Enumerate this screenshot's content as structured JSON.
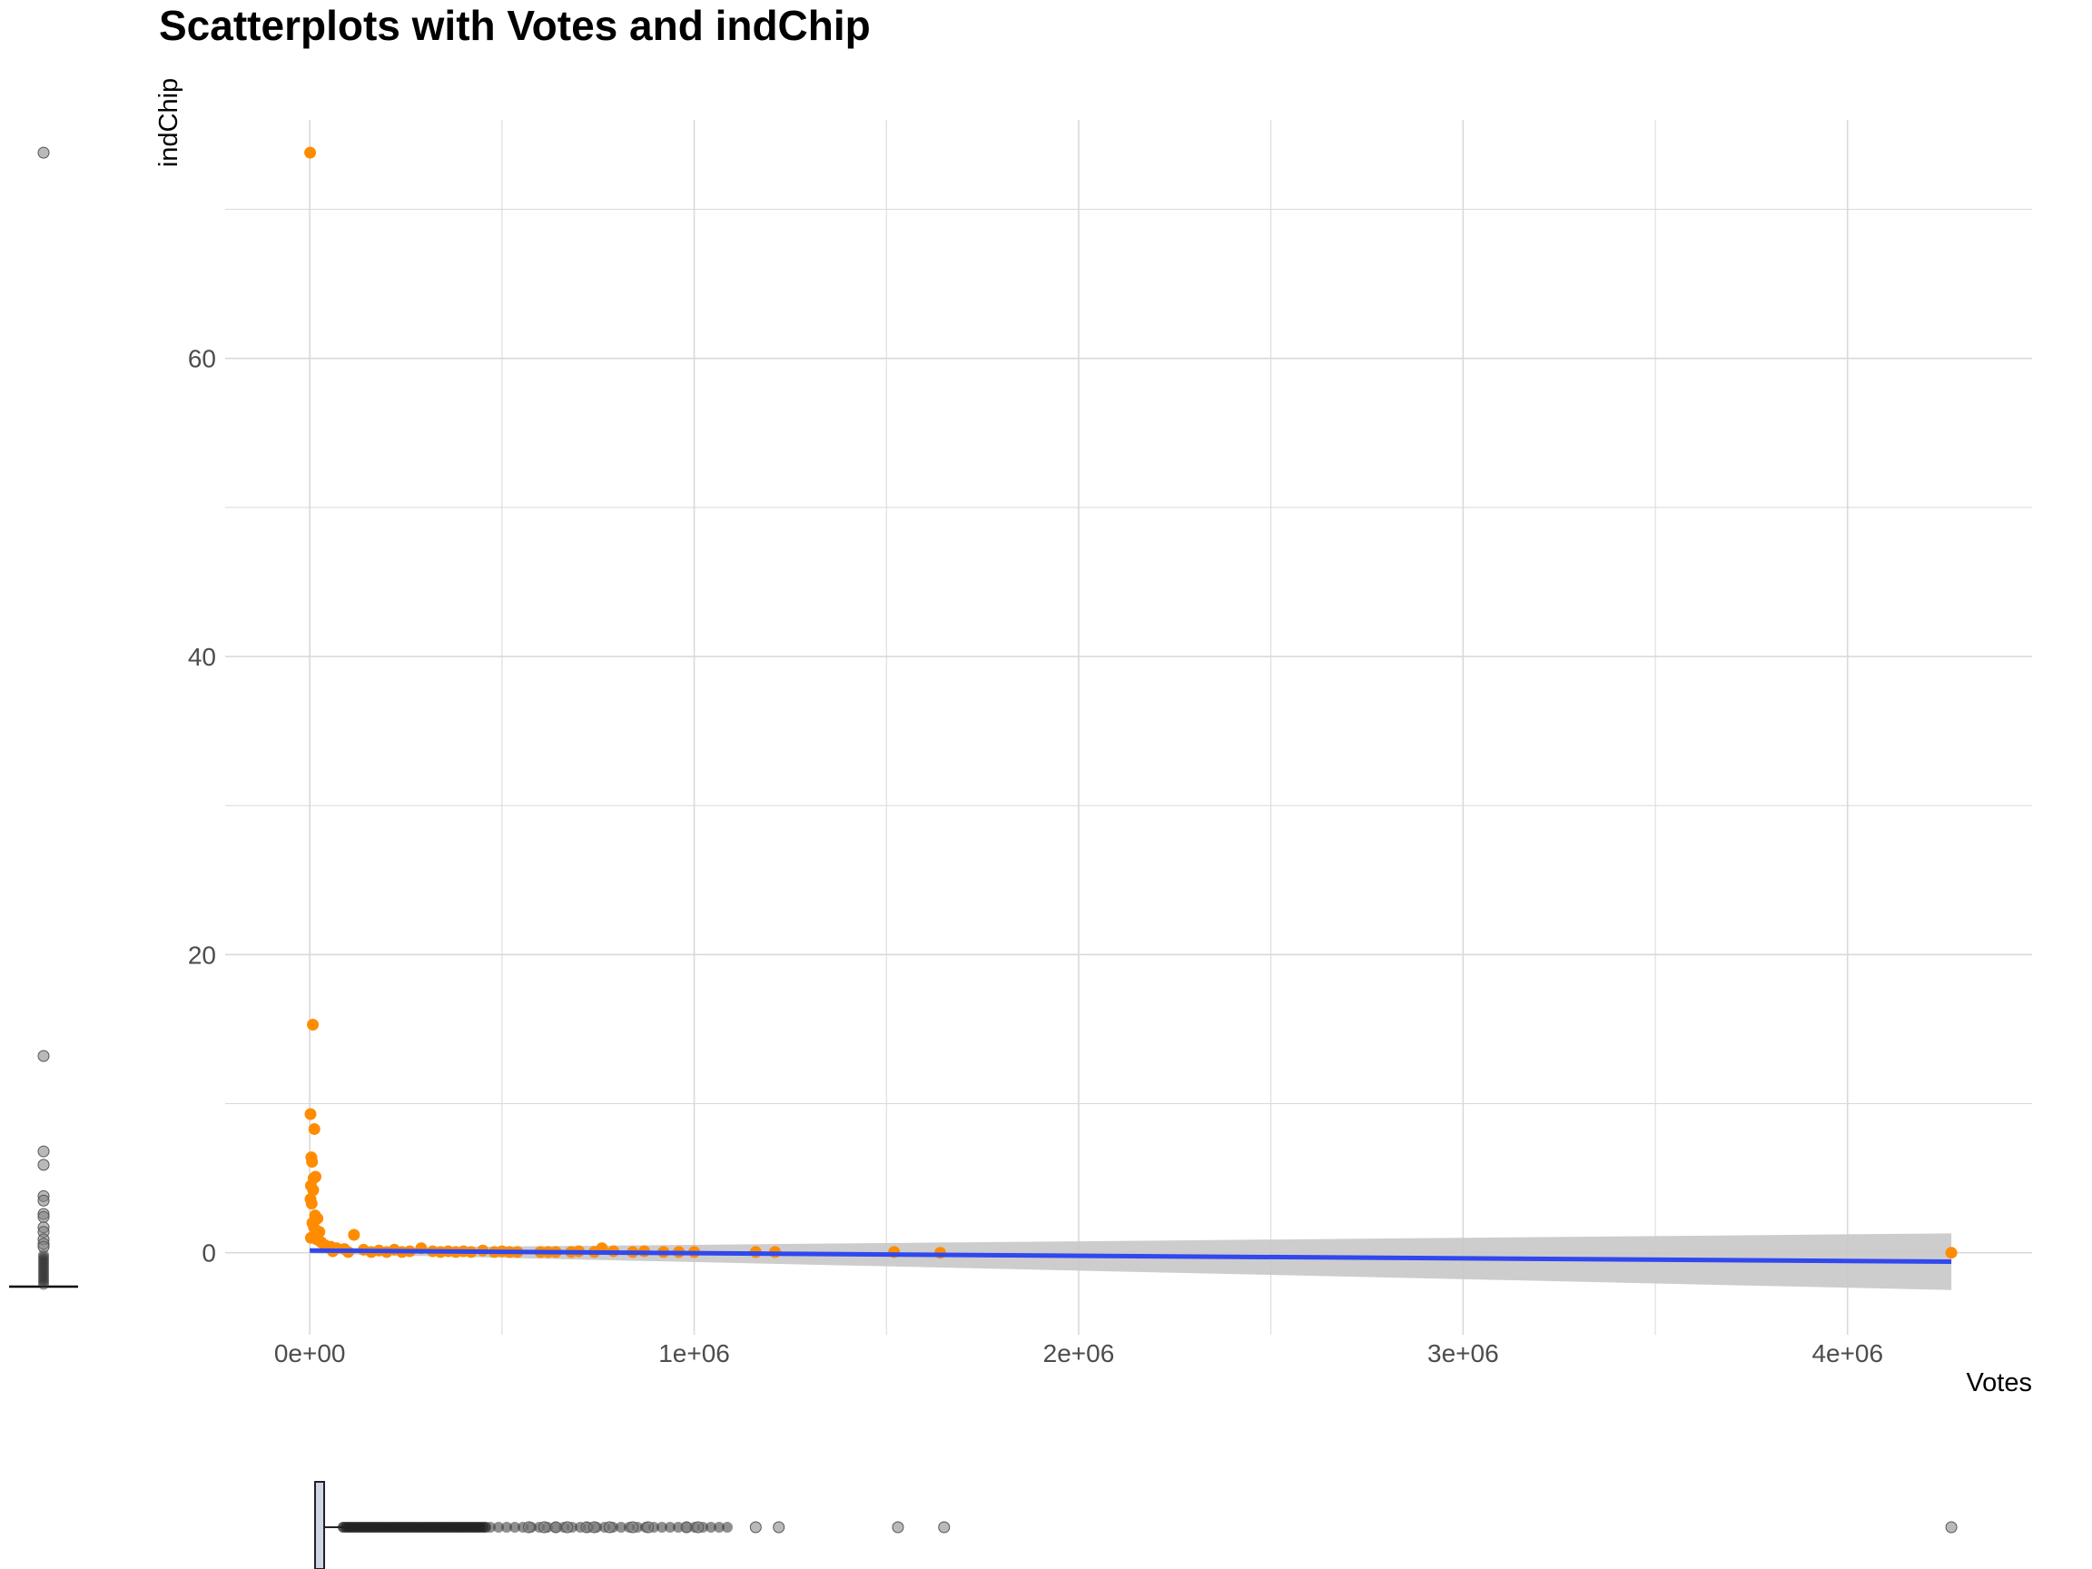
{
  "chart_data": {
    "type": "scatter",
    "title": "Scatterplots with Votes and indChip",
    "xlabel": "Votes",
    "ylabel": "indChip",
    "xlim": [
      -220000,
      4480000
    ],
    "ylim": [
      -5.5,
      76
    ],
    "x_ticks": [
      {
        "value": 0,
        "label": "0e+00"
      },
      {
        "value": 1000000,
        "label": "1e+06"
      },
      {
        "value": 2000000,
        "label": "2e+06"
      },
      {
        "value": 3000000,
        "label": "3e+06"
      },
      {
        "value": 4000000,
        "label": "4e+06"
      }
    ],
    "x_minor": [
      500000,
      1500000,
      2500000,
      3500000
    ],
    "y_ticks": [
      {
        "value": 0,
        "label": "0"
      },
      {
        "value": 20,
        "label": "20"
      },
      {
        "value": 40,
        "label": "40"
      },
      {
        "value": 60,
        "label": "60"
      }
    ],
    "y_minor": [
      10,
      30,
      50,
      70
    ],
    "grid": true,
    "colors": {
      "points": "#ff8c00",
      "fit_line": "#3048ee",
      "confidence_band": "#c8c8c8",
      "grid": "#d9d9d9",
      "marginal_points": "#808080"
    },
    "series": [
      {
        "points": [
          [
            1000,
            73.8
          ],
          [
            8000,
            15.3
          ],
          [
            2000,
            9.3
          ],
          [
            12000,
            8.3
          ],
          [
            4000,
            6.4
          ],
          [
            6000,
            6.1
          ],
          [
            10000,
            5.0
          ],
          [
            15000,
            5.1
          ],
          [
            3000,
            4.5
          ],
          [
            9000,
            4.2
          ],
          [
            2000,
            3.6
          ],
          [
            5000,
            3.3
          ],
          [
            14000,
            2.5
          ],
          [
            20000,
            2.3
          ],
          [
            7000,
            2.0
          ],
          [
            11000,
            1.7
          ],
          [
            25000,
            1.4
          ],
          [
            115000,
            1.2
          ],
          [
            3000,
            1.0
          ],
          [
            18000,
            0.9
          ],
          [
            30000,
            0.7
          ],
          [
            40000,
            0.5
          ],
          [
            55000,
            0.4
          ],
          [
            70000,
            0.3
          ],
          [
            90000,
            0.25
          ],
          [
            140000,
            0.2
          ],
          [
            180000,
            0.15
          ],
          [
            220000,
            0.2
          ],
          [
            260000,
            0.1
          ],
          [
            290000,
            0.3
          ],
          [
            320000,
            0.1
          ],
          [
            360000,
            0.1
          ],
          [
            400000,
            0.1
          ],
          [
            450000,
            0.15
          ],
          [
            500000,
            0.1
          ],
          [
            540000,
            0.05
          ],
          [
            600000,
            0.05
          ],
          [
            640000,
            0.05
          ],
          [
            700000,
            0.1
          ],
          [
            760000,
            0.3
          ],
          [
            790000,
            0.1
          ],
          [
            840000,
            0.05
          ],
          [
            870000,
            0.1
          ],
          [
            920000,
            0.05
          ],
          [
            960000,
            0.05
          ],
          [
            1000000,
            0.05
          ],
          [
            1160000,
            0.05
          ],
          [
            1210000,
            0.05
          ],
          [
            1520000,
            0.05
          ],
          [
            1640000,
            0.0
          ],
          [
            4270000,
            0.0
          ],
          [
            60000,
            0.1
          ],
          [
            100000,
            0.05
          ],
          [
            160000,
            0.05
          ],
          [
            200000,
            0.05
          ],
          [
            240000,
            0.05
          ],
          [
            340000,
            0.05
          ],
          [
            380000,
            0.05
          ],
          [
            420000,
            0.05
          ],
          [
            480000,
            0.05
          ],
          [
            520000,
            0.05
          ],
          [
            620000,
            0.05
          ],
          [
            680000,
            0.05
          ],
          [
            740000,
            0.05
          ]
        ]
      }
    ],
    "fit_line": {
      "x": [
        0,
        4270000
      ],
      "y": [
        0.15,
        -0.6
      ]
    },
    "confidence_band": {
      "x": [
        0,
        4270000
      ],
      "lower": [
        -0.05,
        -2.5
      ],
      "upper": [
        0.3,
        1.3
      ]
    },
    "marginal_y_boxplot": {
      "outliers": [
        73.8,
        13.2,
        6.8,
        5.9,
        3.8,
        3.5,
        2.6,
        2.4,
        1.7,
        1.4,
        0.9,
        0.6,
        0.4
      ]
    },
    "marginal_x_boxplot": {
      "outliers": [
        570000,
        610000,
        640000,
        670000,
        720000,
        740000,
        780000,
        840000,
        880000,
        980000,
        1010000,
        1160000,
        1220000,
        1530000,
        1650000,
        4270000
      ]
    }
  }
}
